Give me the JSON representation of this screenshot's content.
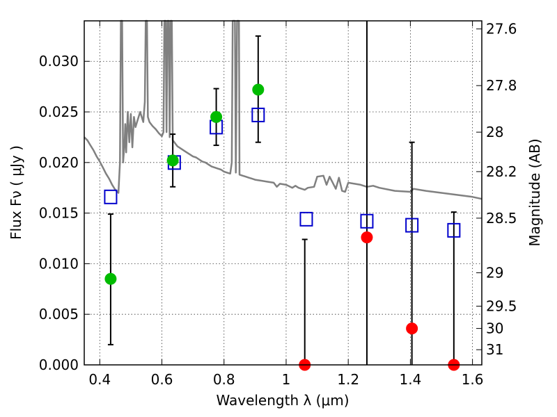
{
  "chart_data": {
    "type": "scatter",
    "title": "",
    "xlabel": "Wavelength  λ (μm)",
    "ylabel": "Flux  Fν  ( μJy )",
    "y2label": "Magnitude (AB)",
    "xlim": [
      0.35,
      1.63
    ],
    "ylim": [
      0.0,
      0.034
    ],
    "grid": true,
    "x_ticks": [
      0.4,
      0.6,
      0.8,
      1.0,
      1.2,
      1.4,
      1.6
    ],
    "x_tick_labels": [
      "0.4",
      "0.6",
      "0.8",
      "1",
      "1.2",
      "1.4",
      "1.6"
    ],
    "y_ticks": [
      0.0,
      0.005,
      0.01,
      0.015,
      0.02,
      0.025,
      0.03
    ],
    "y_tick_labels": [
      "0.000",
      "0.005",
      "0.010",
      "0.015",
      "0.020",
      "0.025",
      "0.030"
    ],
    "y2_ticks": [
      {
        "label": "27.6",
        "flux": 0.0332
      },
      {
        "label": "27.8",
        "flux": 0.0276
      },
      {
        "label": "28",
        "flux": 0.023
      },
      {
        "label": "28.2",
        "flux": 0.0191
      },
      {
        "label": "28.5",
        "flux": 0.0145
      },
      {
        "label": "29",
        "flux": 0.0091
      },
      {
        "label": "29.5",
        "flux": 0.0058
      },
      {
        "label": "30",
        "flux": 0.0036
      },
      {
        "label": "31",
        "flux": 0.0015
      }
    ],
    "colors": {
      "model": "#808080",
      "detection": "#00bb00",
      "upper_limit": "#ff0000",
      "model_band": "#0000cc",
      "errorbar": "#000000"
    },
    "series": [
      {
        "type": "line",
        "points": [
          [
            0.35,
            0.0225
          ],
          [
            0.36,
            0.0222
          ],
          [
            0.37,
            0.0217
          ],
          [
            0.38,
            0.0212
          ],
          [
            0.39,
            0.0206
          ],
          [
            0.4,
            0.0201
          ],
          [
            0.41,
            0.0195
          ],
          [
            0.42,
            0.0189
          ],
          [
            0.43,
            0.0184
          ],
          [
            0.44,
            0.0178
          ],
          [
            0.45,
            0.0173
          ],
          [
            0.46,
            0.017
          ],
          [
            0.465,
            0.02
          ],
          [
            0.468,
            0.034
          ],
          [
            0.472,
            0.034
          ],
          [
            0.475,
            0.02
          ],
          [
            0.48,
            0.022
          ],
          [
            0.482,
            0.0238
          ],
          [
            0.485,
            0.021
          ],
          [
            0.49,
            0.025
          ],
          [
            0.495,
            0.022
          ],
          [
            0.5,
            0.0248
          ],
          [
            0.505,
            0.0215
          ],
          [
            0.51,
            0.0245
          ],
          [
            0.515,
            0.0235
          ],
          [
            0.52,
            0.024
          ],
          [
            0.53,
            0.025
          ],
          [
            0.54,
            0.024
          ],
          [
            0.545,
            0.026
          ],
          [
            0.548,
            0.034
          ],
          [
            0.552,
            0.034
          ],
          [
            0.555,
            0.0245
          ],
          [
            0.56,
            0.024
          ],
          [
            0.57,
            0.0236
          ],
          [
            0.58,
            0.0233
          ],
          [
            0.59,
            0.0229
          ],
          [
            0.6,
            0.0226
          ],
          [
            0.605,
            0.023
          ],
          [
            0.608,
            0.034
          ],
          [
            0.612,
            0.034
          ],
          [
            0.615,
            0.023
          ],
          [
            0.618,
            0.034
          ],
          [
            0.622,
            0.034
          ],
          [
            0.625,
            0.0225
          ],
          [
            0.628,
            0.034
          ],
          [
            0.632,
            0.034
          ],
          [
            0.635,
            0.0222
          ],
          [
            0.64,
            0.022
          ],
          [
            0.65,
            0.0216
          ],
          [
            0.66,
            0.0214
          ],
          [
            0.67,
            0.0212
          ],
          [
            0.68,
            0.021
          ],
          [
            0.69,
            0.0208
          ],
          [
            0.7,
            0.0206
          ],
          [
            0.71,
            0.0205
          ],
          [
            0.72,
            0.0203
          ],
          [
            0.73,
            0.0201
          ],
          [
            0.74,
            0.02
          ],
          [
            0.75,
            0.0198
          ],
          [
            0.76,
            0.0196
          ],
          [
            0.77,
            0.0195
          ],
          [
            0.78,
            0.0194
          ],
          [
            0.79,
            0.0193
          ],
          [
            0.8,
            0.0191
          ],
          [
            0.81,
            0.019
          ],
          [
            0.82,
            0.0189
          ],
          [
            0.825,
            0.02
          ],
          [
            0.828,
            0.034
          ],
          [
            0.835,
            0.034
          ],
          [
            0.838,
            0.019
          ],
          [
            0.842,
            0.034
          ],
          [
            0.848,
            0.034
          ],
          [
            0.85,
            0.0188
          ],
          [
            0.86,
            0.0187
          ],
          [
            0.87,
            0.0186
          ],
          [
            0.88,
            0.0185
          ],
          [
            0.89,
            0.0184
          ],
          [
            0.9,
            0.0183
          ],
          [
            0.92,
            0.0182
          ],
          [
            0.94,
            0.0181
          ],
          [
            0.96,
            0.018
          ],
          [
            0.97,
            0.0176
          ],
          [
            0.98,
            0.0179
          ],
          [
            1.0,
            0.0178
          ],
          [
            1.02,
            0.0175
          ],
          [
            1.03,
            0.0177
          ],
          [
            1.04,
            0.0175
          ],
          [
            1.06,
            0.0173
          ],
          [
            1.07,
            0.0175
          ],
          [
            1.09,
            0.0176
          ],
          [
            1.1,
            0.0186
          ],
          [
            1.12,
            0.0187
          ],
          [
            1.13,
            0.0178
          ],
          [
            1.14,
            0.0186
          ],
          [
            1.15,
            0.018
          ],
          [
            1.16,
            0.0174
          ],
          [
            1.17,
            0.0185
          ],
          [
            1.18,
            0.0172
          ],
          [
            1.19,
            0.0171
          ],
          [
            1.2,
            0.018
          ],
          [
            1.22,
            0.0179
          ],
          [
            1.24,
            0.0178
          ],
          [
            1.26,
            0.0176
          ],
          [
            1.28,
            0.0177
          ],
          [
            1.3,
            0.0175
          ],
          [
            1.35,
            0.0172
          ],
          [
            1.4,
            0.0171
          ],
          [
            1.41,
            0.0174
          ],
          [
            1.45,
            0.0172
          ],
          [
            1.5,
            0.017
          ],
          [
            1.55,
            0.0168
          ],
          [
            1.6,
            0.0166
          ],
          [
            1.63,
            0.0164
          ]
        ]
      },
      {
        "type": "scatter",
        "marker": "circle",
        "points": [
          [
            0.435,
            0.0085
          ],
          [
            0.635,
            0.0202
          ],
          [
            0.775,
            0.0245
          ],
          [
            0.91,
            0.0272
          ]
        ],
        "errors": [
          [
            0.002,
            0.0149
          ],
          [
            0.0176,
            0.0228
          ],
          [
            0.0217,
            0.0273
          ],
          [
            0.022,
            0.0325
          ]
        ]
      },
      {
        "type": "scatter",
        "marker": "circle",
        "points": [
          [
            1.06,
            0.0
          ],
          [
            1.26,
            0.0126
          ],
          [
            1.405,
            0.0036
          ],
          [
            1.54,
            0.0
          ]
        ],
        "errors": [
          [
            0.0,
            0.0124
          ],
          [
            0.0,
            0.034
          ],
          [
            0.0,
            0.022
          ],
          [
            0.0,
            0.0151
          ]
        ]
      },
      {
        "type": "scatter",
        "marker": "square",
        "points": [
          [
            0.435,
            0.0166
          ],
          [
            0.64,
            0.02
          ],
          [
            0.775,
            0.0235
          ],
          [
            0.91,
            0.0247
          ],
          [
            1.065,
            0.0144
          ],
          [
            1.26,
            0.0142
          ],
          [
            1.405,
            0.0138
          ],
          [
            1.54,
            0.0133
          ]
        ]
      }
    ]
  }
}
